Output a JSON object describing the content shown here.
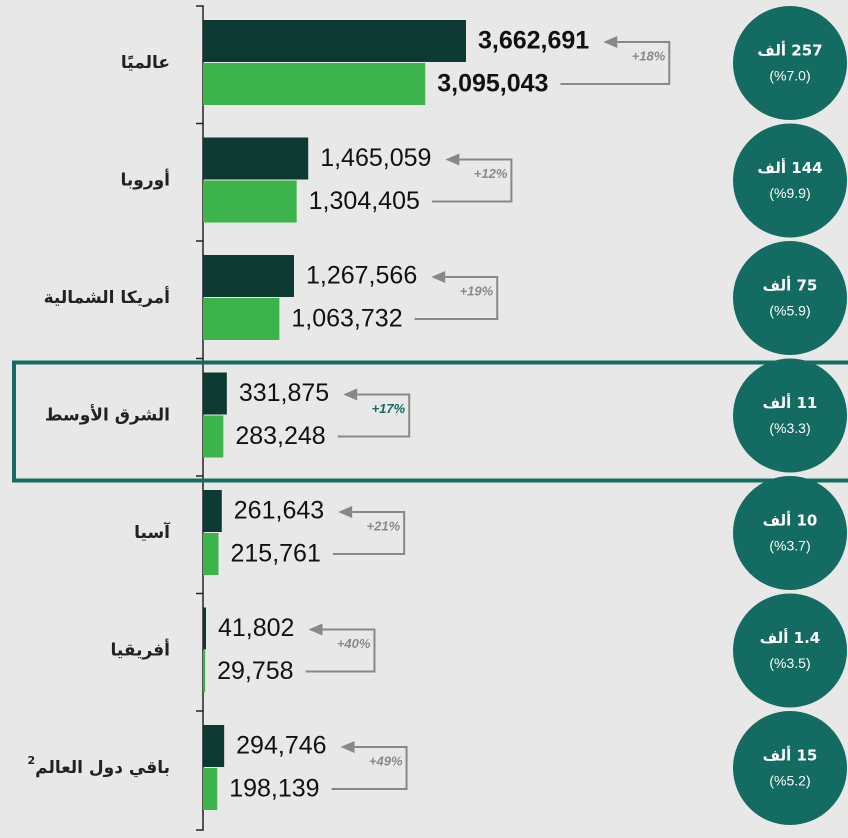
{
  "chart_data": {
    "type": "bar",
    "orientation": "horizontal",
    "categories": [
      "عالميًا",
      "أوروبا",
      "أمريكا الشمالية",
      "الشرق الأوسط",
      "آسيا",
      "أفريقيا",
      "باقي دول العالم"
    ],
    "category_notes": [
      null,
      null,
      null,
      null,
      null,
      null,
      "2"
    ],
    "series": [
      {
        "color": "#0c3a33",
        "values": [
          3662691,
          1465059,
          1267566,
          331875,
          261643,
          41802,
          294746
        ],
        "value_labels": [
          "3,662,691",
          "1,465,059",
          "1,267,566",
          "331,875",
          "261,643",
          "41,802",
          "294,746"
        ]
      },
      {
        "color": "#3cb44b",
        "values": [
          3095043,
          1304405,
          1063732,
          283248,
          215761,
          29758,
          198139
        ],
        "value_labels": [
          "3,095,043",
          "1,304,405",
          "1,063,732",
          "283,248",
          "215,761",
          "29,758",
          "198,139"
        ]
      }
    ],
    "growth_labels": [
      "+18%",
      "+12%",
      "+19%",
      "+17%",
      "+21%",
      "+40%",
      "+49%"
    ],
    "circle_labels": [
      "257 ألف",
      "144 ألف",
      "75 ألف",
      "11 ألف",
      "10 ألف",
      "1.4 ألف",
      "15 ألف"
    ],
    "circle_sublabels": [
      "(%7.0)",
      "(%9.9)",
      "(%5.9)",
      "(%3.3)",
      "(%3.7)",
      "(%3.5)",
      "(%5.2)"
    ],
    "circle_color": "#136b62",
    "highlight_index": 3,
    "bold_index": 0,
    "xlim": [
      0,
      5000000
    ]
  }
}
